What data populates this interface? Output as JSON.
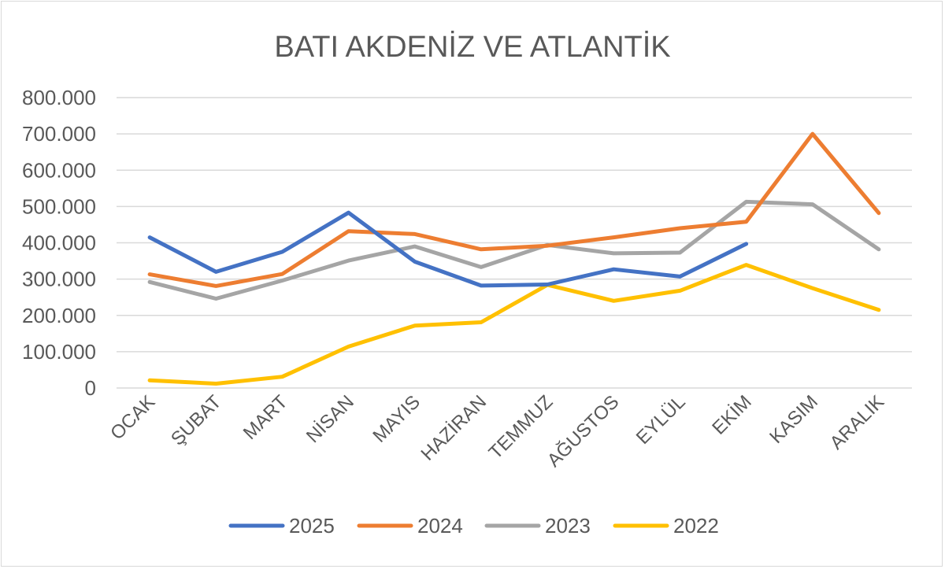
{
  "chart_data": {
    "type": "line",
    "title": "BATI AKDENİZ VE ATLANTİK",
    "xlabel": "",
    "ylabel": "",
    "ylim": [
      0,
      800000
    ],
    "y_ticks": [
      0,
      100000,
      200000,
      300000,
      400000,
      500000,
      600000,
      700000,
      800000
    ],
    "y_tick_labels": [
      "0",
      "100.000",
      "200.000",
      "300.000",
      "400.000",
      "500.000",
      "600.000",
      "700.000",
      "800.000"
    ],
    "grid": true,
    "legend_position": "bottom",
    "categories": [
      "OCAK",
      "ŞUBAT",
      "MART",
      "NİSAN",
      "MAYIS",
      "HAZİRAN",
      "TEMMUZ",
      "AĞUSTOS",
      "EYLÜL",
      "EKİM",
      "KASIM",
      "ARALIK"
    ],
    "series": [
      {
        "name": "2025",
        "color": "#4472C4",
        "values": [
          415000,
          320000,
          375000,
          483000,
          348000,
          282000,
          285000,
          327000,
          307000,
          397000,
          null,
          null
        ]
      },
      {
        "name": "2024",
        "color": "#ED7D31",
        "values": [
          313000,
          281000,
          314000,
          432000,
          424000,
          382000,
          392000,
          415000,
          440000,
          458000,
          700000,
          482000
        ]
      },
      {
        "name": "2023",
        "color": "#A5A5A5",
        "values": [
          292000,
          246000,
          296000,
          351000,
          390000,
          333000,
          394000,
          371000,
          373000,
          513000,
          506000,
          382000
        ]
      },
      {
        "name": "2022",
        "color": "#FFC000",
        "values": [
          21000,
          12000,
          31000,
          114000,
          172000,
          181000,
          284000,
          240000,
          268000,
          339000,
          275000,
          215000
        ]
      }
    ]
  }
}
